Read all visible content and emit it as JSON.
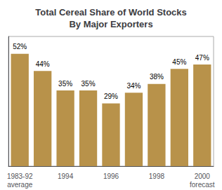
{
  "chart_data": {
    "type": "bar",
    "title": "Total Cereal Share of World Stocks\nBy Major Exporters",
    "categories": [
      "1983-92\naverage",
      null,
      "1994",
      null,
      "1996",
      null,
      "1998",
      null,
      "2000\nforecast"
    ],
    "values": [
      52,
      44,
      35,
      35,
      29,
      34,
      38,
      45,
      47
    ],
    "value_labels": [
      "52%",
      "44%",
      "35%",
      "35%",
      "29%",
      "34%",
      "38%",
      "45%",
      "47%"
    ],
    "data_labels": true,
    "color": "#b8924a",
    "ylim": [
      0,
      60
    ],
    "grid": false,
    "tick_labels": "x"
  }
}
